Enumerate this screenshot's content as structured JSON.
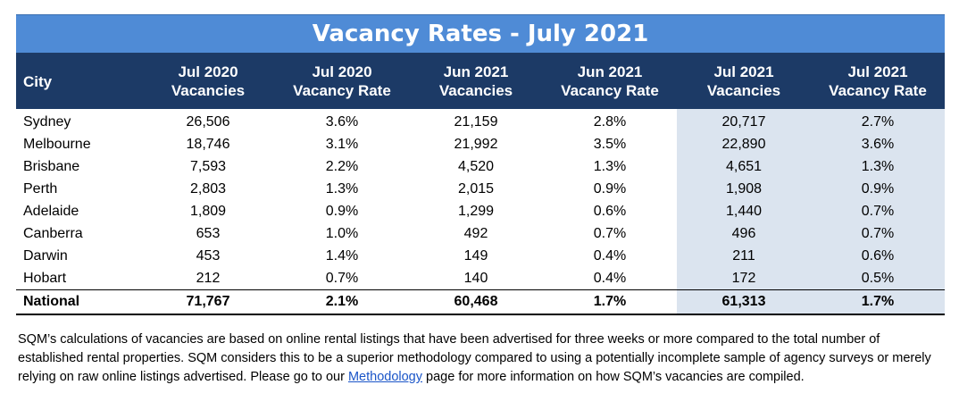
{
  "title": "Vacancy Rates - July 2021",
  "columns": [
    {
      "line1": "City",
      "line2": ""
    },
    {
      "line1": "Jul 2020",
      "line2": "Vacancies"
    },
    {
      "line1": "Jul 2020",
      "line2": "Vacancy Rate"
    },
    {
      "line1": "Jun 2021",
      "line2": "Vacancies"
    },
    {
      "line1": "Jun 2021",
      "line2": "Vacancy Rate"
    },
    {
      "line1": "Jul 2021",
      "line2": "Vacancies"
    },
    {
      "line1": "Jul 2021",
      "line2": "Vacancy Rate"
    }
  ],
  "rows": [
    [
      "Sydney",
      "26,506",
      "3.6%",
      "21,159",
      "2.8%",
      "20,717",
      "2.7%"
    ],
    [
      "Melbourne",
      "18,746",
      "3.1%",
      "21,992",
      "3.5%",
      "22,890",
      "3.6%"
    ],
    [
      "Brisbane",
      "7,593",
      "2.2%",
      "4,520",
      "1.3%",
      "4,651",
      "1.3%"
    ],
    [
      "Perth",
      "2,803",
      "1.3%",
      "2,015",
      "0.9%",
      "1,908",
      "0.9%"
    ],
    [
      "Adelaide",
      "1,809",
      "0.9%",
      "1,299",
      "0.6%",
      "1,440",
      "0.7%"
    ],
    [
      "Canberra",
      "653",
      "1.0%",
      "492",
      "0.7%",
      "496",
      "0.7%"
    ],
    [
      "Darwin",
      "453",
      "1.4%",
      "149",
      "0.4%",
      "211",
      "0.6%"
    ],
    [
      "Hobart",
      "212",
      "0.7%",
      "140",
      "0.4%",
      "172",
      "0.5%"
    ]
  ],
  "national": [
    "National",
    "71,767",
    "2.1%",
    "60,468",
    "1.7%",
    "61,313",
    "1.7%"
  ],
  "note": {
    "before_link": "SQM’s calculations of vacancies are based on online rental listings that have been advertised for three weeks or more compared to the total number of established rental properties. SQM considers this to be a superior methodology compared to using a potentially incomplete sample of agency surveys or merely relying on raw online listings advertised. Please go to our ",
    "link_text": "Methodology",
    "after_link": " page for more information on how SQM’s vacancies are compiled."
  },
  "colors": {
    "title_bg": "#4f8bd6",
    "header_bg": "#1c3a66",
    "highlight_bg": "#dbe4ef",
    "link": "#1a55c8"
  }
}
